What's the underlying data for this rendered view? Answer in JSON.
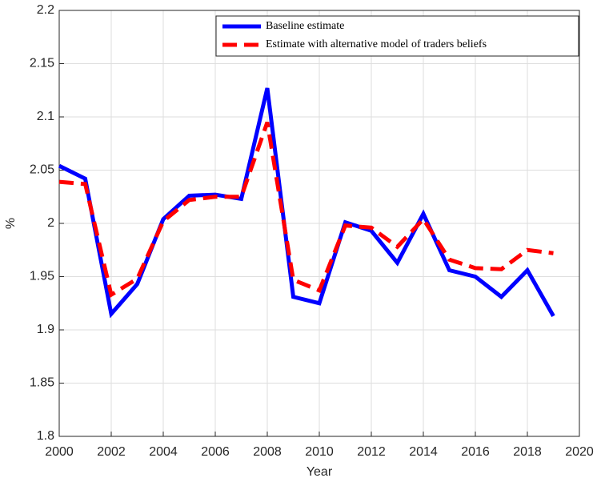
{
  "chart_data": {
    "type": "line",
    "x_label": "Year",
    "y_label": "%",
    "x": [
      2000,
      2001,
      2002,
      2003,
      2004,
      2005,
      2006,
      2007,
      2008,
      2009,
      2010,
      2011,
      2012,
      2013,
      2014,
      2015,
      2016,
      2017,
      2018,
      2019
    ],
    "series": [
      {
        "name": "Baseline estimate",
        "color": "#0000ff",
        "dashed": false,
        "values": [
          2.054,
          2.042,
          1.915,
          1.943,
          2.004,
          2.026,
          2.027,
          2.023,
          2.127,
          1.931,
          1.925,
          2.001,
          1.993,
          1.963,
          2.009,
          1.956,
          1.95,
          1.931,
          1.956,
          1.913
        ]
      },
      {
        "name": "Estimate with alternative model of traders beliefs",
        "color": "#ff0000",
        "dashed": true,
        "values": [
          2.039,
          2.037,
          1.933,
          1.948,
          2.002,
          2.022,
          2.025,
          2.025,
          2.095,
          1.947,
          1.937,
          1.998,
          1.996,
          1.978,
          2.004,
          1.966,
          1.958,
          1.957,
          1.975,
          1.972
        ]
      }
    ],
    "xlim": [
      2000,
      2020
    ],
    "xticks": [
      2000,
      2002,
      2004,
      2006,
      2008,
      2010,
      2012,
      2014,
      2016,
      2018,
      2020
    ],
    "ylim": [
      1.8,
      2.2
    ],
    "yticks": [
      1.8,
      1.85,
      1.9,
      1.95,
      2,
      2.05,
      2.1,
      2.15,
      2.2
    ],
    "grid": true,
    "legend": "top-right"
  }
}
